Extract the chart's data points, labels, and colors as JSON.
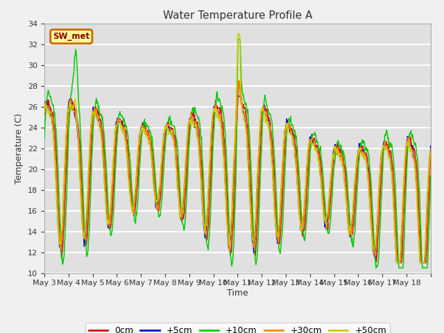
{
  "title": "Water Temperature Profile A",
  "xlabel": "Time",
  "ylabel": "Temperature (C)",
  "ylim": [
    10,
    34
  ],
  "yticks": [
    10,
    12,
    14,
    16,
    18,
    20,
    22,
    24,
    26,
    28,
    30,
    32,
    34
  ],
  "bg_color": "#e0e0e0",
  "fig_color": "#f0f0f0",
  "grid_color": "#ffffff",
  "label_box_text": "SW_met",
  "label_box_bg": "#ffff99",
  "label_box_border": "#cc6600",
  "label_box_text_color": "#880000",
  "series_colors": [
    "#dd0000",
    "#0000cc",
    "#00cc00",
    "#ff8800",
    "#cccc00"
  ],
  "series_labels": [
    "0cm",
    "+5cm",
    "+10cm",
    "+30cm",
    "+50cm"
  ],
  "num_days": 16,
  "x_tick_labels": [
    "May 3",
    "May 4",
    "May 5",
    "May 6",
    "May 7",
    "May 8",
    "May 9",
    "May 10",
    "May 11",
    "May 12",
    "May 13",
    "May 14",
    "May 15",
    "May 16",
    "May 17",
    "May 18"
  ]
}
